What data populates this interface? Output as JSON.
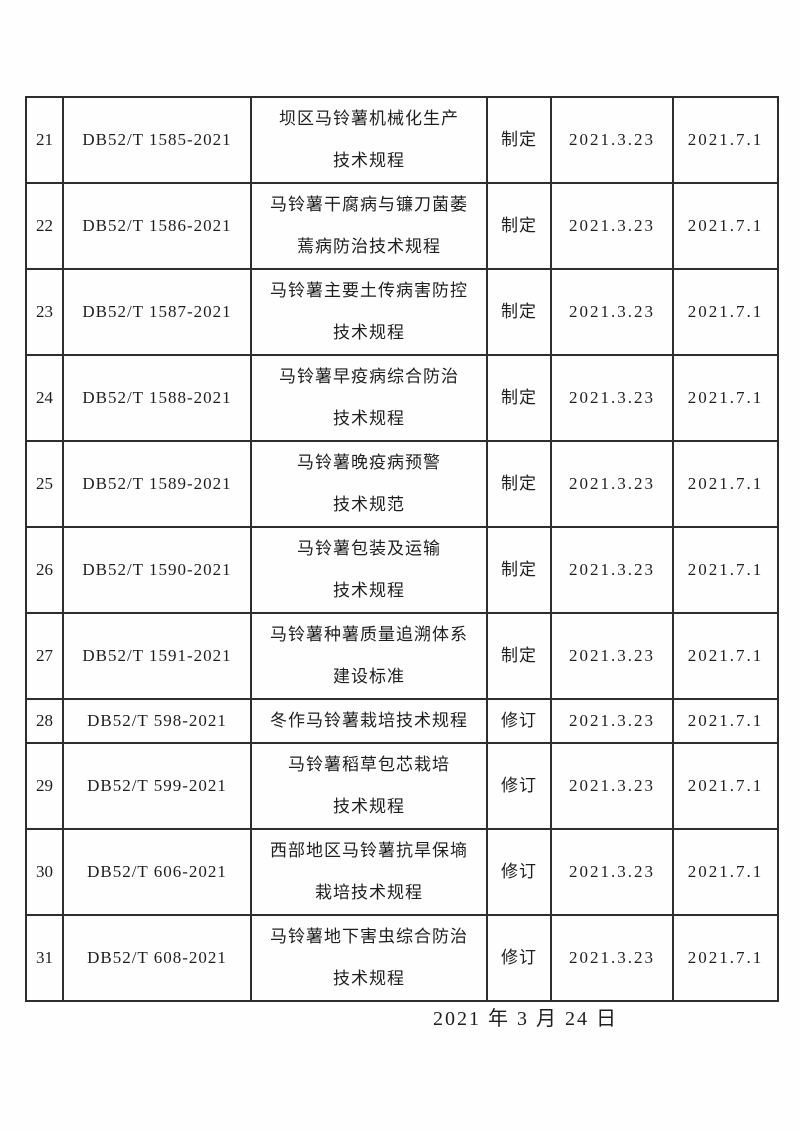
{
  "page": {
    "footer_date": "2021 年 3 月 24 日",
    "border_color": "#2e2e2e",
    "background_color": "#fefefe"
  },
  "table": {
    "rows": [
      {
        "no": "21",
        "code": "DB52/T 1585-2021",
        "name_lines": [
          "坝区马铃薯机械化生产",
          "技术规程"
        ],
        "action": "制定",
        "date1": "2021.3.23",
        "date2": "2021.7.1"
      },
      {
        "no": "22",
        "code": "DB52/T 1586-2021",
        "name_lines": [
          "马铃薯干腐病与镰刀菌萎",
          "蔫病防治技术规程"
        ],
        "action": "制定",
        "date1": "2021.3.23",
        "date2": "2021.7.1"
      },
      {
        "no": "23",
        "code": "DB52/T 1587-2021",
        "name_lines": [
          "马铃薯主要土传病害防控",
          "技术规程"
        ],
        "action": "制定",
        "date1": "2021.3.23",
        "date2": "2021.7.1"
      },
      {
        "no": "24",
        "code": "DB52/T 1588-2021",
        "name_lines": [
          "马铃薯早疫病综合防治",
          "技术规程"
        ],
        "action": "制定",
        "date1": "2021.3.23",
        "date2": "2021.7.1"
      },
      {
        "no": "25",
        "code": "DB52/T 1589-2021",
        "name_lines": [
          "马铃薯晚疫病预警",
          "技术规范"
        ],
        "action": "制定",
        "date1": "2021.3.23",
        "date2": "2021.7.1"
      },
      {
        "no": "26",
        "code": "DB52/T 1590-2021",
        "name_lines": [
          "马铃薯包装及运输",
          "技术规程"
        ],
        "action": "制定",
        "date1": "2021.3.23",
        "date2": "2021.7.1"
      },
      {
        "no": "27",
        "code": "DB52/T 1591-2021",
        "name_lines": [
          "马铃薯种薯质量追溯体系",
          "建设标准"
        ],
        "action": "制定",
        "date1": "2021.3.23",
        "date2": "2021.7.1"
      },
      {
        "no": "28",
        "code": "DB52/T 598-2021",
        "name_lines": [
          "冬作马铃薯栽培技术规程"
        ],
        "action": "修订",
        "date1": "2021.3.23",
        "date2": "2021.7.1"
      },
      {
        "no": "29",
        "code": "DB52/T 599-2021",
        "name_lines": [
          "马铃薯稻草包芯栽培",
          "技术规程"
        ],
        "action": "修订",
        "date1": "2021.3.23",
        "date2": "2021.7.1"
      },
      {
        "no": "30",
        "code": "DB52/T 606-2021",
        "name_lines": [
          "西部地区马铃薯抗旱保墒",
          "栽培技术规程"
        ],
        "action": "修订",
        "date1": "2021.3.23",
        "date2": "2021.7.1"
      },
      {
        "no": "31",
        "code": "DB52/T 608-2021",
        "name_lines": [
          "马铃薯地下害虫综合防治",
          "技术规程"
        ],
        "action": "修订",
        "date1": "2021.3.23",
        "date2": "2021.7.1"
      }
    ]
  }
}
